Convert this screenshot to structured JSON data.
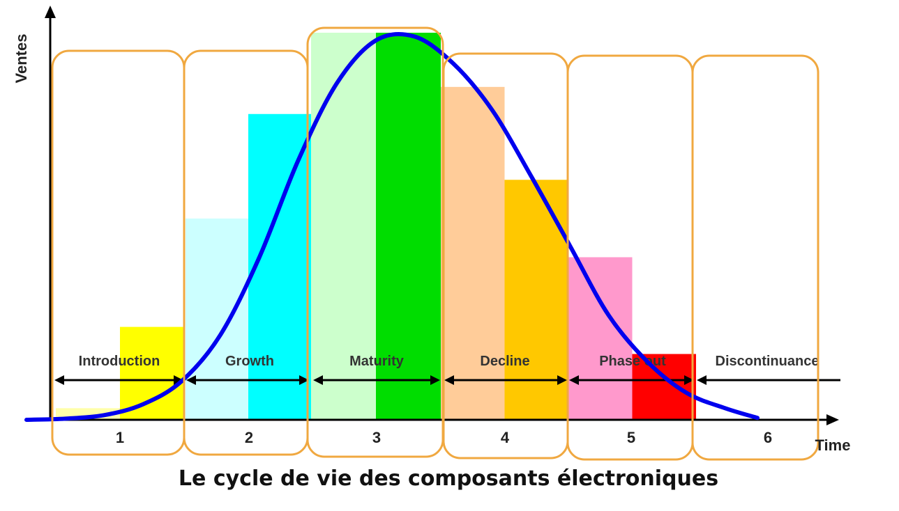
{
  "chart_data": {
    "type": "bar",
    "title": "Le cycle de vie des composants électroniques",
    "ylabel": "Ventes",
    "xlabel": "Time",
    "categories": [
      "1",
      "2",
      "3",
      "4",
      "5",
      "6"
    ],
    "stages": [
      "Introduction",
      "Growth",
      "Maturity",
      "Decline",
      "Phase out",
      "Discontinuance"
    ],
    "ylim": [
      0,
      100
    ],
    "grid": false,
    "series": [
      {
        "values": [
          3,
          52,
          100,
          86,
          42,
          0
        ],
        "colors": [
          "#ffffaa",
          "#ccffff",
          "#ccffcc",
          "#ffcc99",
          "#ff99cc",
          "#ffffff"
        ]
      },
      {
        "values": [
          24,
          79,
          100,
          62,
          17,
          0
        ],
        "colors": [
          "#ffff00",
          "#00ffff",
          "#00dd00",
          "#ffc800",
          "#ff0000",
          "#ffffff"
        ]
      }
    ],
    "curve": {
      "type": "line",
      "color": "#0000ee",
      "x": [
        0,
        0.3,
        0.6,
        0.9,
        1.2,
        1.5,
        1.8,
        2.1,
        2.4,
        2.7,
        3.0,
        3.3,
        3.6,
        3.9,
        4.2,
        4.5,
        4.8,
        5.1,
        5.4,
        5.65
      ],
      "y": [
        0,
        0.3,
        1.2,
        4,
        10,
        22,
        42,
        67,
        87,
        98,
        99,
        92,
        80,
        63,
        45,
        27,
        15,
        7,
        3,
        0.5
      ]
    },
    "colors": {
      "frame": "#f0a840",
      "arrow": "#000000",
      "curve": "#0000ee"
    }
  }
}
